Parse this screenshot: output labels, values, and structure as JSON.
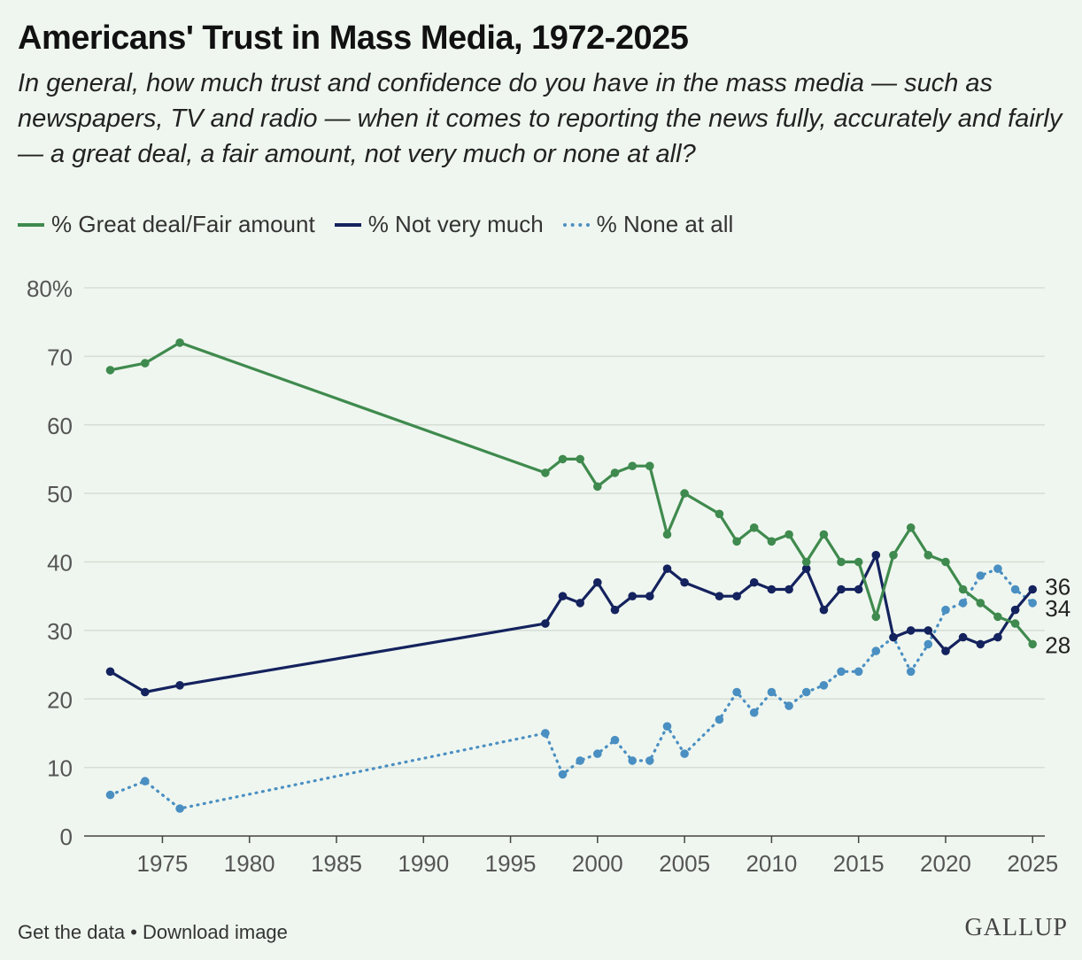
{
  "title": "Americans' Trust in Mass Media, 1972-2025",
  "subtitle": "In general, how much trust and confidence do you have in the mass media — such as newspapers, TV and radio — when it comes to reporting the news fully, accurately and fairly — a great deal, a fair amount, not very much or none at all?",
  "footer": {
    "get_data": "Get the data",
    "separator": " • ",
    "download": "Download image",
    "logo": "GALLUP"
  },
  "chart_data": {
    "type": "line",
    "xlim": [
      1970.5,
      2025.7
    ],
    "ylim": [
      0,
      80
    ],
    "y_ticks": [
      0,
      10,
      20,
      30,
      40,
      50,
      60,
      70,
      80
    ],
    "y_tick_labels": [
      "0",
      "10",
      "20",
      "30",
      "40",
      "50",
      "60",
      "70",
      "80%"
    ],
    "x_ticks": [
      1975,
      1980,
      1985,
      1990,
      1995,
      2000,
      2005,
      2010,
      2015,
      2020,
      2025
    ],
    "x_tick_labels": [
      "1975",
      "1980",
      "1985",
      "1990",
      "1995",
      "2000",
      "2005",
      "2010",
      "2015",
      "2020",
      "2025"
    ],
    "grid": "horizontal",
    "legend_position": "top-left",
    "x": [
      1972,
      1974,
      1976,
      1997,
      1998,
      1999,
      2000,
      2001,
      2002,
      2003,
      2004,
      2005,
      2007,
      2008,
      2009,
      2010,
      2011,
      2012,
      2013,
      2014,
      2015,
      2016,
      2017,
      2018,
      2019,
      2020,
      2021,
      2022,
      2023,
      2024,
      2025
    ],
    "series": [
      {
        "name": "% Great deal/Fair amount",
        "color": "#3f8a4e",
        "style": "solid",
        "values": [
          68,
          69,
          72,
          53,
          55,
          55,
          51,
          53,
          54,
          54,
          44,
          50,
          47,
          43,
          45,
          43,
          44,
          40,
          44,
          40,
          40,
          32,
          41,
          45,
          41,
          40,
          36,
          34,
          32,
          31,
          28
        ],
        "end_label": "28"
      },
      {
        "name": "% Not very much",
        "color": "#14225e",
        "style": "solid",
        "values": [
          24,
          21,
          22,
          31,
          35,
          34,
          37,
          33,
          35,
          35,
          39,
          37,
          35,
          35,
          37,
          36,
          36,
          39,
          33,
          36,
          36,
          41,
          29,
          30,
          30,
          27,
          29,
          28,
          29,
          33,
          36
        ],
        "end_label": "36"
      },
      {
        "name": "% None at all",
        "color": "#4a8fc2",
        "style": "dotted",
        "values": [
          6,
          8,
          4,
          15,
          9,
          11,
          12,
          14,
          11,
          11,
          16,
          12,
          17,
          21,
          18,
          21,
          19,
          21,
          22,
          24,
          24,
          27,
          29,
          24,
          28,
          33,
          34,
          38,
          39,
          36,
          34
        ],
        "end_label": "34"
      }
    ]
  }
}
